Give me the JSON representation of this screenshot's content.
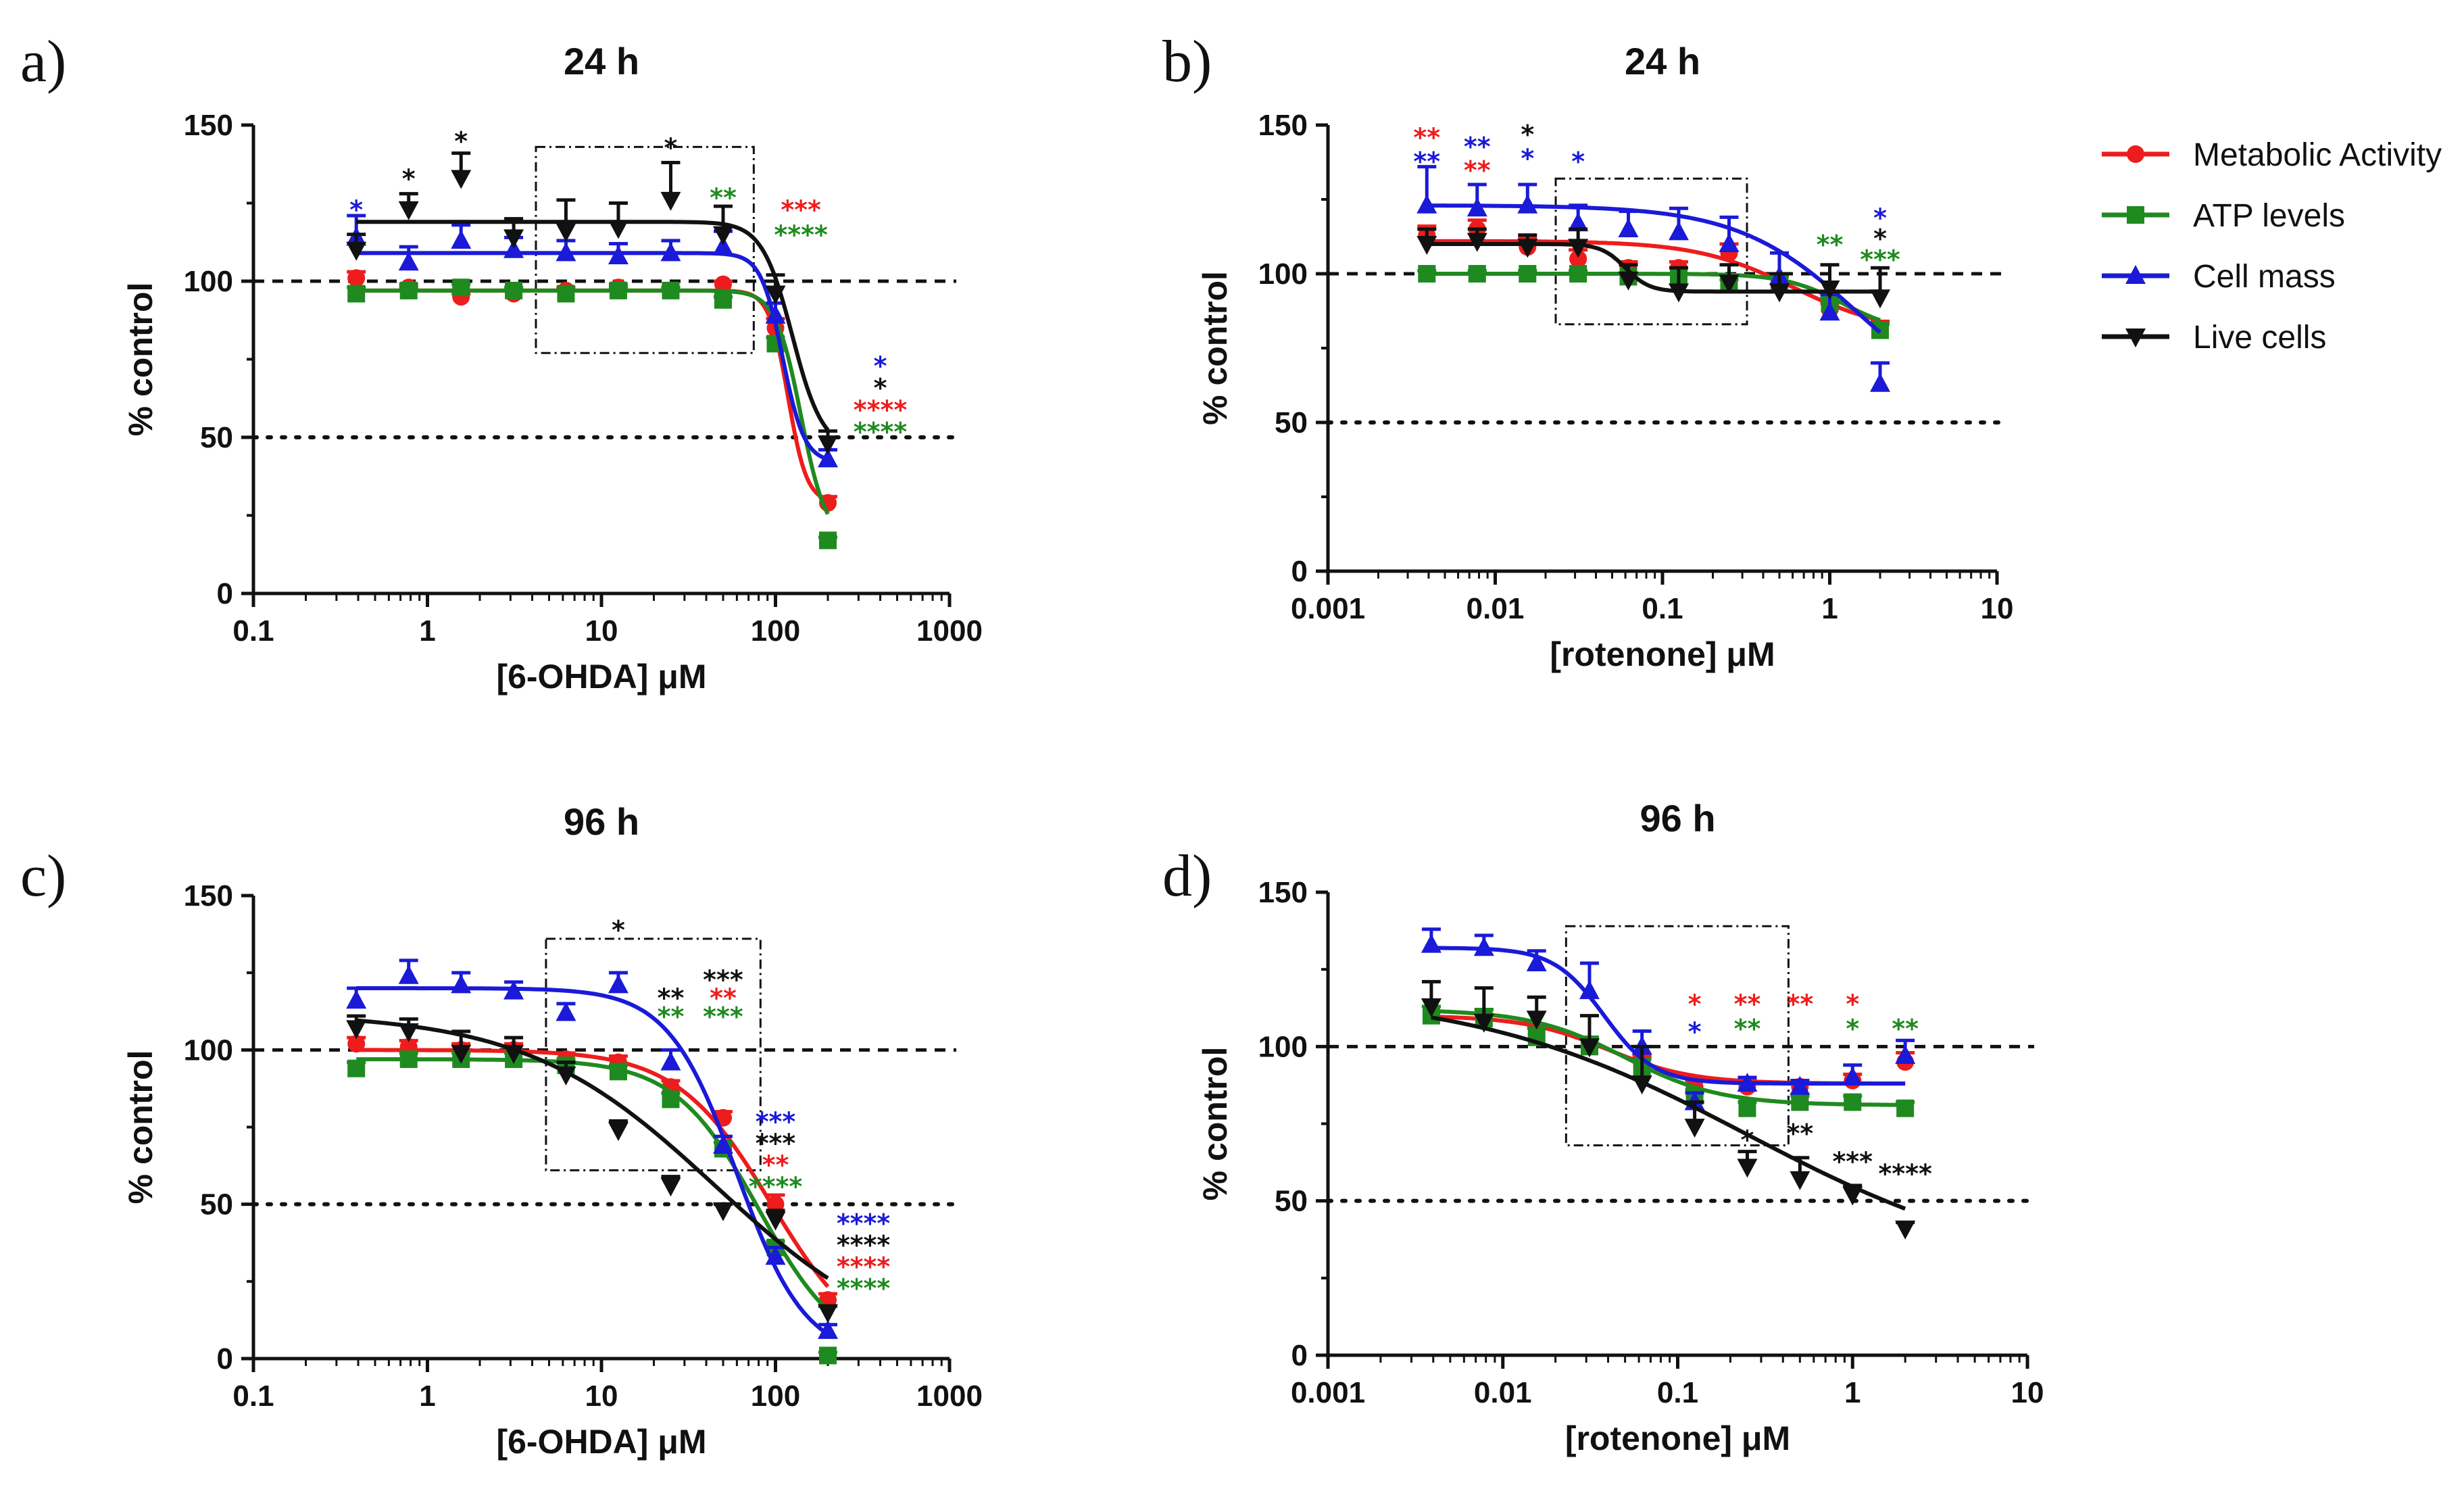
{
  "colors": {
    "metabolic": "#ee1c1c",
    "atp": "#1f8a1f",
    "cellmass": "#1a1ad8",
    "live": "#111111"
  },
  "legend": [
    {
      "label": "Metabolic Activity",
      "key": "metabolic",
      "marker": "circle"
    },
    {
      "label": "ATP levels",
      "key": "atp",
      "marker": "square"
    },
    {
      "label": "Cell mass",
      "key": "cellmass",
      "marker": "triangle-up"
    },
    {
      "label": "Live cells",
      "key": "live",
      "marker": "triangle-down"
    }
  ],
  "chart_data": [
    {
      "id": "a",
      "panel_label": "a)",
      "type": "scatter",
      "title": "24 h",
      "xlabel": "[6-OHDA] μM",
      "ylabel": "% control",
      "xscale": "log",
      "xlim": [
        0.1,
        1000
      ],
      "ylim": [
        0,
        150
      ],
      "xticks": [
        0.1,
        1,
        10,
        100,
        1000
      ],
      "xtick_labels": [
        "0.1",
        "1",
        "10",
        "100",
        "1000"
      ],
      "yticks": [
        0,
        50,
        100,
        150
      ],
      "ytick_labels": [
        "0",
        "50",
        "100",
        "150"
      ],
      "ref_lines": {
        "dashed": 100,
        "dotted": 50
      },
      "x": [
        0.39,
        0.78,
        1.56,
        3.13,
        6.25,
        12.5,
        25,
        50,
        100,
        200
      ],
      "series": [
        {
          "key": "metabolic",
          "name": "Metabolic Activity",
          "values": [
            101,
            98,
            95,
            96,
            97,
            98,
            97,
            99,
            85,
            29
          ],
          "errors": [
            2,
            1,
            1,
            1,
            1,
            1,
            1,
            1,
            3,
            2
          ],
          "fit": {
            "top": 97,
            "bottom": 29,
            "ec50": 118,
            "hill": 8
          }
        },
        {
          "key": "atp",
          "name": "ATP levels",
          "values": [
            96,
            97,
            98,
            97,
            96,
            97,
            97,
            94,
            80,
            17
          ],
          "errors": [
            2,
            1,
            1,
            1,
            1,
            1,
            1,
            1,
            2,
            1
          ],
          "fit": {
            "top": 97,
            "bottom": 17,
            "ec50": 140,
            "hill": 6
          }
        },
        {
          "key": "cellmass",
          "name": "Cell mass",
          "values": [
            114,
            106,
            113,
            110,
            109,
            108,
            109,
            111,
            89,
            43
          ],
          "errors": [
            7,
            5,
            5,
            4,
            4,
            4,
            4,
            5,
            4,
            3
          ],
          "fit": {
            "top": 109,
            "bottom": 42,
            "ec50": 110,
            "hill": 7
          }
        },
        {
          "key": "live",
          "name": "Live cells",
          "values": [
            110,
            123,
            133,
            114,
            116,
            117,
            126,
            115,
            96,
            48
          ],
          "errors": [
            5,
            5,
            8,
            6,
            10,
            8,
            12,
            9,
            6,
            4
          ],
          "fit": {
            "top": 119,
            "bottom": 46,
            "ec50": 125,
            "hill": 5
          }
        }
      ],
      "annotations": [
        {
          "text": "*",
          "color": "cellmass",
          "x": 0.39,
          "y": 123
        },
        {
          "text": "*",
          "color": "live",
          "x": 0.78,
          "y": 133
        },
        {
          "text": "*",
          "color": "live",
          "x": 1.56,
          "y": 145
        },
        {
          "text": "*",
          "color": "live",
          "x": 25,
          "y": 143
        },
        {
          "text": "**",
          "color": "atp",
          "x": 50,
          "y": 127
        },
        {
          "text": "***",
          "color": "metabolic",
          "x": 140,
          "y": 123
        },
        {
          "text": "****",
          "color": "atp",
          "x": 140,
          "y": 115
        },
        {
          "text": "*",
          "color": "cellmass",
          "x": 400,
          "y": 73
        },
        {
          "text": "*",
          "color": "live",
          "x": 400,
          "y": 66
        },
        {
          "text": "****",
          "color": "metabolic",
          "x": 400,
          "y": 59
        },
        {
          "text": "****",
          "color": "atp",
          "x": 400,
          "y": 52
        }
      ],
      "box": {
        "x1": 4.2,
        "x2": 75,
        "y1": 77,
        "y2": 143
      }
    },
    {
      "id": "b",
      "panel_label": "b)",
      "type": "scatter",
      "title": "24 h",
      "xlabel": "[rotenone] μM",
      "ylabel": "% control",
      "xscale": "log",
      "xlim": [
        0.001,
        10
      ],
      "ylim": [
        0,
        150
      ],
      "xticks": [
        0.001,
        0.01,
        0.1,
        1,
        10
      ],
      "xtick_labels": [
        "0.001",
        "0.01",
        "0.1",
        "1",
        "10"
      ],
      "yticks": [
        0,
        50,
        100,
        150
      ],
      "ytick_labels": [
        "0",
        "50",
        "100",
        "150"
      ],
      "ref_lines": {
        "dashed": 100,
        "dotted": 50
      },
      "x": [
        0.0039,
        0.0078,
        0.0156,
        0.0313,
        0.0625,
        0.125,
        0.25,
        0.5,
        1,
        2
      ],
      "series": [
        {
          "key": "metabolic",
          "name": "Metabolic Activity",
          "values": [
            113,
            115,
            109,
            105,
            102,
            102,
            107,
            97,
            88,
            81
          ],
          "errors": [
            3,
            3,
            3,
            3,
            2,
            2,
            3,
            2,
            2,
            3
          ],
          "fit": {
            "top": 111,
            "bottom": 80,
            "ec50": 0.6,
            "hill": 1.5
          }
        },
        {
          "key": "atp",
          "name": "ATP levels",
          "values": [
            100,
            100,
            100,
            100,
            99,
            99,
            97,
            97,
            90,
            81
          ],
          "errors": [
            1,
            1,
            1,
            1,
            1,
            1,
            1,
            2,
            2,
            2
          ],
          "fit": {
            "top": 100,
            "bottom": 80,
            "ec50": 1.2,
            "hill": 2.5
          }
        },
        {
          "key": "cellmass",
          "name": "Cell mass",
          "values": [
            123,
            122,
            123,
            117,
            115,
            114,
            110,
            99,
            87,
            63
          ],
          "errors": [
            13,
            8,
            7,
            6,
            6,
            8,
            9,
            8,
            6,
            7
          ],
          "fit": {
            "top": 123,
            "bottom": 50,
            "ec50": 1.5,
            "hill": 1.2
          }
        },
        {
          "key": "live",
          "name": "Live cells",
          "values": [
            110,
            111,
            109,
            109,
            98,
            94,
            97,
            94,
            95,
            92
          ],
          "errors": [
            5,
            4,
            4,
            6,
            5,
            8,
            6,
            6,
            8,
            10
          ],
          "fit": {
            "top": 110,
            "bottom": 94,
            "ec50": 0.06,
            "hill": 6
          }
        }
      ],
      "annotations": [
        {
          "text": "**",
          "color": "metabolic",
          "x": 0.0039,
          "y": 146
        },
        {
          "text": "**",
          "color": "cellmass",
          "x": 0.0039,
          "y": 138
        },
        {
          "text": "**",
          "color": "cellmass",
          "x": 0.0078,
          "y": 143
        },
        {
          "text": "**",
          "color": "metabolic",
          "x": 0.0078,
          "y": 135
        },
        {
          "text": "*",
          "color": "live",
          "x": 0.0156,
          "y": 147
        },
        {
          "text": "*",
          "color": "cellmass",
          "x": 0.0156,
          "y": 139
        },
        {
          "text": "*",
          "color": "cellmass",
          "x": 0.0313,
          "y": 138
        },
        {
          "text": "**",
          "color": "atp",
          "x": 1,
          "y": 110
        },
        {
          "text": "*",
          "color": "cellmass",
          "x": 2,
          "y": 119
        },
        {
          "text": "*",
          "color": "live",
          "x": 2,
          "y": 112
        },
        {
          "text": "***",
          "color": "atp",
          "x": 2,
          "y": 105
        }
      ],
      "box": {
        "x1": 0.023,
        "x2": 0.32,
        "y1": 83,
        "y2": 132
      }
    },
    {
      "id": "c",
      "panel_label": "c)",
      "type": "scatter",
      "title": "96 h",
      "xlabel": "[6-OHDA] μM",
      "ylabel": "% control",
      "xscale": "log",
      "xlim": [
        0.1,
        1000
      ],
      "ylim": [
        0,
        150
      ],
      "xticks": [
        0.1,
        1,
        10,
        100,
        1000
      ],
      "xtick_labels": [
        "0.1",
        "1",
        "10",
        "100",
        "1000"
      ],
      "yticks": [
        0,
        50,
        100,
        150
      ],
      "ytick_labels": [
        "0",
        "50",
        "100",
        "150"
      ],
      "ref_lines": {
        "dashed": 100,
        "dotted": 50
      },
      "x": [
        0.39,
        0.78,
        1.56,
        3.13,
        6.25,
        12.5,
        25,
        50,
        100,
        200
      ],
      "series": [
        {
          "key": "metabolic",
          "name": "Metabolic Activity",
          "values": [
            102,
            101,
            100,
            100,
            97,
            96,
            88,
            78,
            50,
            19
          ],
          "errors": [
            2,
            2,
            2,
            2,
            2,
            2,
            2,
            2,
            3,
            2
          ],
          "fit": {
            "top": 100,
            "bottom": 0,
            "ec50": 95,
            "hill": 1.6
          }
        },
        {
          "key": "atp",
          "name": "ATP levels",
          "values": [
            94,
            97,
            97,
            97,
            95,
            93,
            84,
            68,
            36,
            1
          ],
          "errors": [
            2,
            2,
            2,
            2,
            2,
            2,
            2,
            2,
            2,
            1
          ],
          "fit": {
            "top": 97,
            "bottom": 0,
            "ec50": 80,
            "hill": 1.8
          }
        },
        {
          "key": "cellmass",
          "name": "Cell mass",
          "values": [
            116,
            124,
            121,
            119,
            112,
            121,
            96,
            69,
            33,
            9
          ],
          "errors": [
            4,
            5,
            4,
            3,
            3,
            4,
            4,
            3,
            3,
            2
          ],
          "fit": {
            "top": 120,
            "bottom": 0,
            "ec50": 60,
            "hill": 2.2
          }
        },
        {
          "key": "live",
          "name": "Live cells",
          "values": [
            107,
            106,
            99,
            99,
            92,
            74,
            56,
            48,
            45,
            15
          ],
          "errors": [
            4,
            4,
            7,
            5,
            4,
            3,
            3,
            2,
            3,
            2
          ],
          "fit": {
            "top": 112,
            "bottom": 0,
            "ec50": 45,
            "hill": 0.8
          }
        }
      ],
      "annotations": [
        {
          "text": "*",
          "color": "live",
          "x": 12.5,
          "y": 139
        },
        {
          "text": "**",
          "color": "live",
          "x": 25,
          "y": 117
        },
        {
          "text": "**",
          "color": "atp",
          "x": 25,
          "y": 111
        },
        {
          "text": "***",
          "color": "live",
          "x": 50,
          "y": 123
        },
        {
          "text": "**",
          "color": "metabolic",
          "x": 50,
          "y": 117
        },
        {
          "text": "***",
          "color": "atp",
          "x": 50,
          "y": 111
        },
        {
          "text": "***",
          "color": "cellmass",
          "x": 100,
          "y": 77
        },
        {
          "text": "***",
          "color": "live",
          "x": 100,
          "y": 70
        },
        {
          "text": "**",
          "color": "metabolic",
          "x": 100,
          "y": 63
        },
        {
          "text": "****",
          "color": "atp",
          "x": 100,
          "y": 56
        },
        {
          "text": "****",
          "color": "cellmass",
          "x": 320,
          "y": 44
        },
        {
          "text": "****",
          "color": "live",
          "x": 320,
          "y": 37
        },
        {
          "text": "****",
          "color": "metabolic",
          "x": 320,
          "y": 30
        },
        {
          "text": "****",
          "color": "atp",
          "x": 320,
          "y": 23
        }
      ],
      "box": {
        "x1": 4.8,
        "x2": 82,
        "y1": 61,
        "y2": 136
      }
    },
    {
      "id": "d",
      "panel_label": "d)",
      "type": "scatter",
      "title": "96 h",
      "xlabel": "[rotenone] μM",
      "ylabel": "% control",
      "xscale": "log",
      "xlim": [
        0.001,
        10
      ],
      "ylim": [
        0,
        150
      ],
      "xticks": [
        0.001,
        0.01,
        0.1,
        1,
        10
      ],
      "xtick_labels": [
        "0.001",
        "0.01",
        "0.1",
        "1",
        "10"
      ],
      "yticks": [
        0,
        50,
        100,
        150
      ],
      "ytick_labels": [
        "0",
        "50",
        "100",
        "150"
      ],
      "ref_lines": {
        "dashed": 100,
        "dotted": 50
      },
      "x": [
        0.0039,
        0.0078,
        0.0156,
        0.0313,
        0.0625,
        0.125,
        0.25,
        0.5,
        1,
        2
      ],
      "series": [
        {
          "key": "metabolic",
          "name": "Metabolic Activity",
          "values": [
            110,
            109,
            104,
            100,
            94,
            87,
            87,
            87,
            89,
            95
          ],
          "errors": [
            3,
            3,
            3,
            3,
            3,
            2,
            2,
            2,
            2,
            3
          ],
          "fit": {
            "top": 110,
            "bottom": 88,
            "ec50": 0.04,
            "hill": 1.8
          }
        },
        {
          "key": "atp",
          "name": "ATP levels",
          "values": [
            110,
            109,
            103,
            100,
            93,
            84,
            80,
            82,
            82,
            80
          ],
          "errors": [
            3,
            3,
            3,
            3,
            3,
            2,
            2,
            2,
            2,
            2
          ],
          "fit": {
            "top": 112,
            "bottom": 81,
            "ec50": 0.05,
            "hill": 1.6
          }
        },
        {
          "key": "cellmass",
          "name": "Cell mass",
          "values": [
            133,
            132,
            127,
            118,
            100,
            82,
            88,
            87,
            90,
            97
          ],
          "errors": [
            5,
            4,
            4,
            9,
            5,
            3,
            2,
            2,
            4,
            5
          ],
          "fit": {
            "top": 132,
            "bottom": 88,
            "ec50": 0.038,
            "hill": 3
          }
        },
        {
          "key": "live",
          "name": "Live cells",
          "values": [
            113,
            108,
            109,
            100,
            88,
            74,
            61,
            57,
            52,
            41
          ],
          "errors": [
            8,
            11,
            7,
            10,
            12,
            8,
            5,
            7,
            3,
            2
          ],
          "fit": {
            "top": 118,
            "bottom": 25,
            "ec50": 0.25,
            "hill": 0.55
          }
        }
      ],
      "annotations": [
        {
          "text": "*",
          "color": "metabolic",
          "x": 0.125,
          "y": 114
        },
        {
          "text": "*",
          "color": "cellmass",
          "x": 0.125,
          "y": 105
        },
        {
          "text": "**",
          "color": "metabolic",
          "x": 0.25,
          "y": 114
        },
        {
          "text": "**",
          "color": "atp",
          "x": 0.25,
          "y": 106
        },
        {
          "text": "**",
          "color": "metabolic",
          "x": 0.5,
          "y": 114
        },
        {
          "text": "*",
          "color": "metabolic",
          "x": 1,
          "y": 114
        },
        {
          "text": "*",
          "color": "atp",
          "x": 1,
          "y": 106
        },
        {
          "text": "**",
          "color": "atp",
          "x": 2,
          "y": 106
        },
        {
          "text": "*",
          "color": "live",
          "x": 0.25,
          "y": 70
        },
        {
          "text": "**",
          "color": "live",
          "x": 0.5,
          "y": 72
        },
        {
          "text": "***",
          "color": "live",
          "x": 1,
          "y": 63
        },
        {
          "text": "****",
          "color": "live",
          "x": 2,
          "y": 59
        }
      ],
      "box": {
        "x1": 0.023,
        "x2": 0.43,
        "y1": 68,
        "y2": 139
      }
    }
  ]
}
